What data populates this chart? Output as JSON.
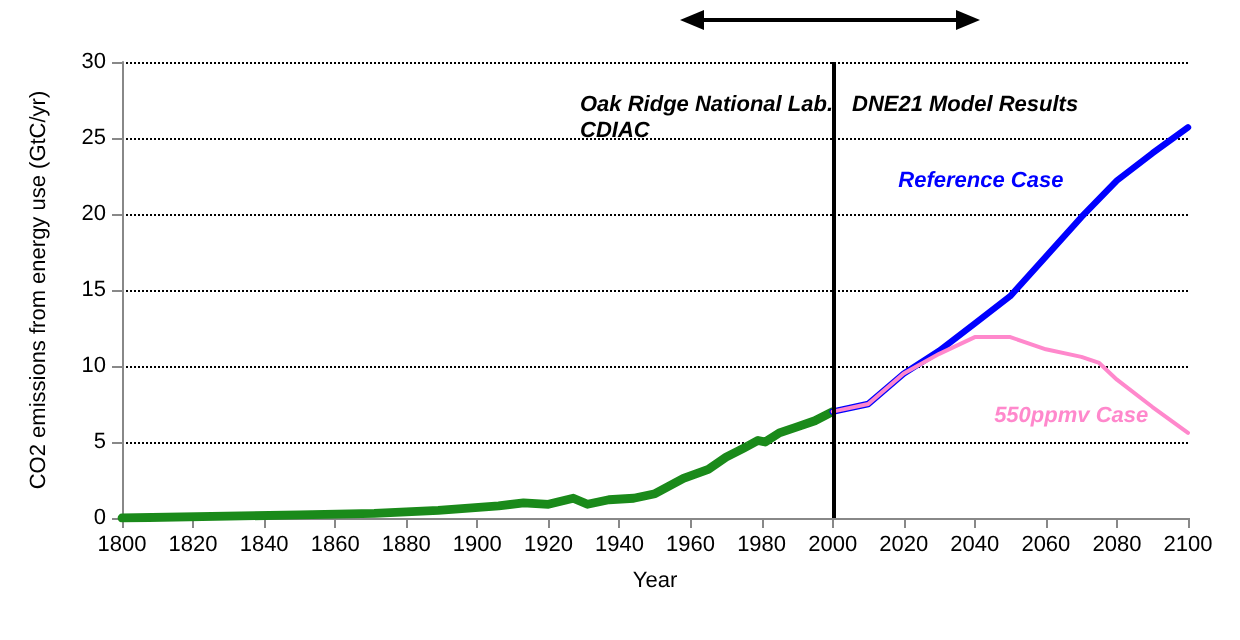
{
  "chart_data": {
    "type": "line",
    "xlabel": "Year",
    "ylabel": "CO2 emissions from energy use (GtC/yr)",
    "xlim": [
      1800,
      2100
    ],
    "xticks": [
      1800,
      1820,
      1840,
      1860,
      1880,
      1900,
      1920,
      1940,
      1960,
      1980,
      2000,
      2020,
      2040,
      2060,
      2080,
      2100
    ],
    "ylim": [
      0,
      30
    ],
    "yticks": [
      0,
      5,
      10,
      15,
      20,
      25,
      30
    ],
    "grid": "y",
    "legend": false,
    "marker": "none",
    "line_style": "solid",
    "series": [
      {
        "color": "#1a8a1a",
        "x": [
          1800,
          1850,
          1871,
          1889,
          1906,
          1913,
          1920,
          1927,
          1931,
          1937,
          1944,
          1950,
          1958,
          1965,
          1970,
          1975,
          1979,
          1981,
          1985,
          1990,
          1995,
          2000
        ],
        "values": [
          0,
          0.2,
          0.3,
          0.5,
          0.8,
          1.0,
          0.9,
          1.3,
          0.9,
          1.2,
          1.3,
          1.6,
          2.6,
          3.2,
          4.0,
          4.6,
          5.1,
          5.0,
          5.6,
          6.0,
          6.4,
          7.0
        ]
      },
      {
        "name": "Reference Case",
        "color": "#0000ff",
        "x": [
          2000,
          2010,
          2020,
          2030,
          2040,
          2050,
          2060,
          2070,
          2080,
          2090,
          2100
        ],
        "values": [
          7.0,
          7.5,
          9.5,
          11.0,
          12.8,
          14.6,
          17.2,
          19.8,
          22.2,
          24.0,
          25.7
        ]
      },
      {
        "name": "550ppmv Case",
        "color": "#ff88cc",
        "x": [
          2000,
          2010,
          2020,
          2030,
          2040,
          2050,
          2060,
          2070,
          2075,
          2080,
          2090,
          2100
        ],
        "values": [
          7.0,
          7.5,
          9.5,
          10.8,
          11.9,
          11.9,
          11.1,
          10.6,
          10.2,
          9.1,
          7.3,
          5.6
        ]
      }
    ],
    "ref_lines": [
      {
        "axis": "x",
        "value": 2000,
        "color": "#000000"
      }
    ],
    "annotations": [
      "Oak Ridge National Lab.\nCDIAC",
      "DNE21 Model Results"
    ]
  }
}
